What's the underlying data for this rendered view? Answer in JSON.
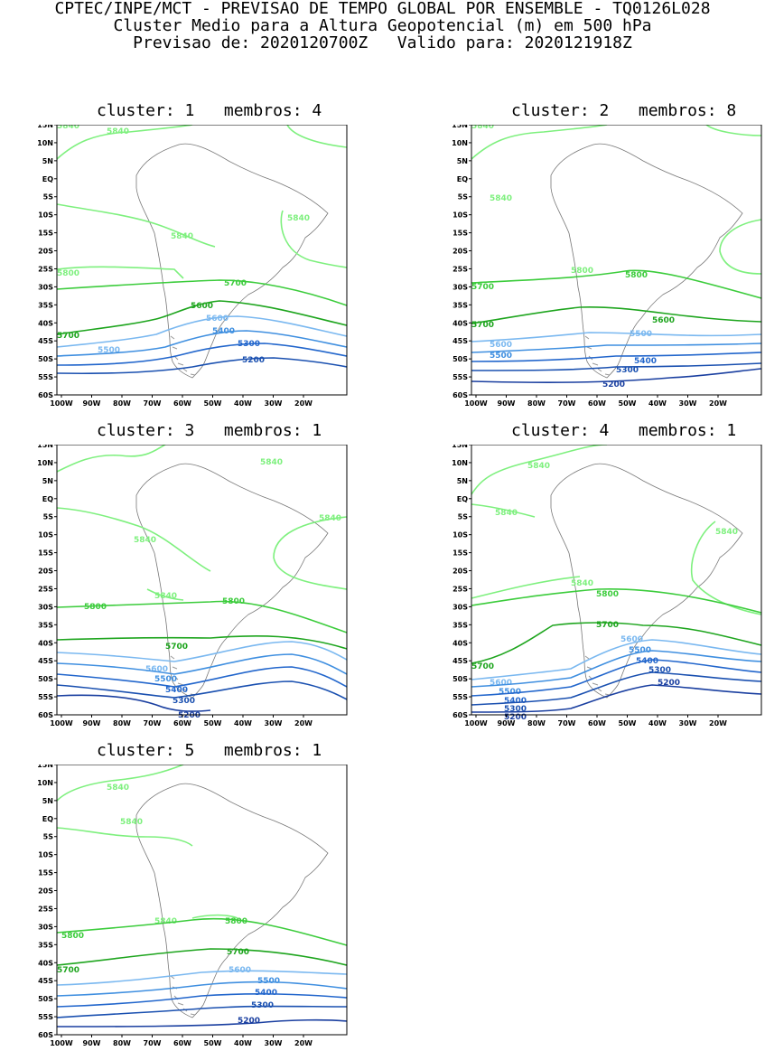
{
  "header": {
    "line1": "CPTEC/INPE/MCT - PREVISAO DE TEMPO GLOBAL POR ENSEMBLE - TQ0126L028",
    "line2": "Cluster Medio para a Altura Geopotencial (m) em 500 hPa",
    "line3": "Previsao de: 2020120700Z   Valido para: 2020121918Z"
  },
  "axes": {
    "lat_labels": [
      "15N",
      "10N",
      "5N",
      "EQ",
      "5S",
      "10S",
      "15S",
      "20S",
      "25S",
      "30S",
      "35S",
      "40S",
      "45S",
      "50S",
      "55S",
      "60S"
    ],
    "lon_labels": [
      "100W",
      "90W",
      "80W",
      "70W",
      "60W",
      "50W",
      "40W",
      "30W",
      "20W"
    ]
  },
  "contour_colors": {
    "5840": "#7ef07e",
    "5800": "#3ccc3c",
    "5700": "#1ea51e",
    "5600": "#7ab8f0",
    "5500": "#3f8fe0",
    "5400": "#2266cc",
    "5300": "#1a50b0",
    "5200": "#1a3fa0",
    "5100": "#5a3cb4"
  },
  "panels": [
    {
      "title": "cluster: 1   membros: 4",
      "labels": [
        "5840",
        "5840",
        "5840",
        "5840",
        "5800",
        "5700",
        "5700",
        "5600",
        "5600",
        "5500",
        "5400",
        "5300",
        "5200"
      ]
    },
    {
      "title": "cluster: 2   membros: 8",
      "labels": [
        "5840",
        "5840",
        "5800",
        "5800",
        "5700",
        "5700",
        "5600",
        "5600",
        "5500",
        "5500",
        "5400",
        "5300",
        "5200"
      ]
    },
    {
      "title": "cluster: 3   membros: 1",
      "labels": [
        "5840",
        "5840",
        "5840",
        "5840",
        "5800",
        "5800",
        "5700",
        "5600",
        "5500",
        "5400",
        "5300",
        "5200"
      ]
    },
    {
      "title": "cluster: 4   membros: 1",
      "labels": [
        "5840",
        "5840",
        "5840",
        "5840",
        "5800",
        "5700",
        "5700",
        "5600",
        "5600",
        "5500",
        "5500",
        "5400",
        "5400",
        "5300",
        "5300",
        "5200",
        "5200"
      ]
    },
    {
      "title": "cluster: 5   membros: 1",
      "labels": [
        "5840",
        "5840",
        "5840",
        "5800",
        "5800",
        "5700",
        "5700",
        "5600",
        "5500",
        "5400",
        "5300",
        "5200"
      ]
    }
  ]
}
